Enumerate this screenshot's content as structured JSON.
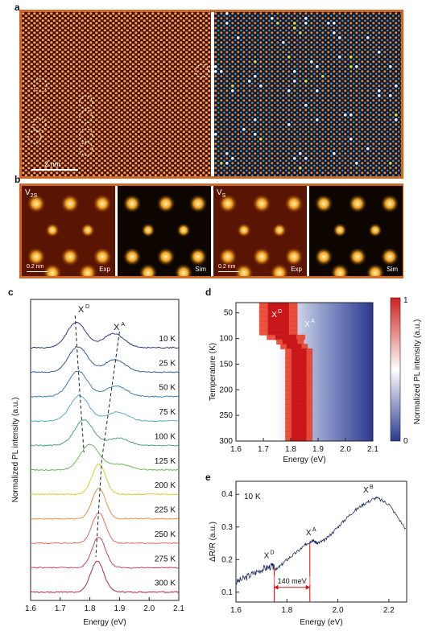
{
  "panel_a": {
    "label": "a",
    "scale_bar": "2 nm"
  },
  "panel_b": {
    "label": "b",
    "tiles": [
      {
        "corner": "V",
        "corner_sub": "2S",
        "tag": "Exp",
        "scale": "0.2 nm"
      },
      {
        "corner": "",
        "corner_sub": "",
        "tag": "Sim",
        "scale": ""
      },
      {
        "corner": "V",
        "corner_sub": "S",
        "tag": "Exp",
        "scale": "0.2 nm"
      },
      {
        "corner": "",
        "corner_sub": "",
        "tag": "Sim",
        "scale": ""
      }
    ]
  },
  "chart_data": [
    {
      "panel": "c",
      "type": "line",
      "xlabel": "Energy (eV)",
      "ylabel": "Normalized PL intensity (a.u.)",
      "xlim": [
        1.6,
        2.1
      ],
      "xticks": [
        "1.6",
        "1.7",
        "1.8",
        "1.9",
        "2.0",
        "2.1"
      ],
      "annotations": [
        "X",
        "D",
        "X",
        "A"
      ],
      "series": [
        {
          "name": "10 K",
          "peak": 1.755,
          "color": "#1a2a6c"
        },
        {
          "name": "25 K",
          "peak": 1.76,
          "color": "#1d4f8a"
        },
        {
          "name": "50 K",
          "peak": 1.76,
          "color": "#2a73a8"
        },
        {
          "name": "75 K",
          "peak": 1.765,
          "color": "#4aa3c8"
        },
        {
          "name": "100 K",
          "peak": 1.78,
          "color": "#3b9a6a"
        },
        {
          "name": "125 K",
          "peak": 1.8,
          "color": "#5db04a"
        },
        {
          "name": "200 K",
          "peak": 1.83,
          "color": "#d6c81a"
        },
        {
          "name": "225 K",
          "peak": 1.83,
          "color": "#e8843a"
        },
        {
          "name": "250 K",
          "peak": 1.83,
          "color": "#e0604a"
        },
        {
          "name": "275 K",
          "peak": 1.83,
          "color": "#c8305a"
        },
        {
          "name": "300 K",
          "peak": 1.825,
          "color": "#b0123a"
        }
      ]
    },
    {
      "panel": "d",
      "type": "heatmap",
      "xlabel": "Energy (eV)",
      "ylabel": "Temperature (K)",
      "xlim": [
        1.6,
        2.1
      ],
      "ylim": [
        30,
        300
      ],
      "xticks": [
        "1.6",
        "1.7",
        "1.8",
        "1.9",
        "2.0",
        "2.1"
      ],
      "yticks": [
        "50",
        "100",
        "150",
        "200",
        "250",
        "300"
      ],
      "colorbar": {
        "label": "Normalized PL intensity (a.u.)",
        "min": "0",
        "max": "1"
      },
      "annotations": [
        "X",
        "D",
        "X",
        "A"
      ]
    },
    {
      "panel": "e",
      "type": "line",
      "xlabel": "Energy (eV)",
      "ylabel": "ΔR/R (a.u.)",
      "xlim": [
        1.6,
        2.27
      ],
      "ylim": [
        0.07,
        0.44
      ],
      "xticks": [
        "1.6",
        "1.8",
        "2.0",
        "2.2"
      ],
      "yticks": [
        "0.1",
        "0.2",
        "0.3",
        "0.4"
      ],
      "temperature": "10 K",
      "annotations": [
        "X",
        "D",
        "X",
        "A",
        "X",
        "B"
      ],
      "gap_label": "140 meV",
      "x": [
        1.6,
        1.65,
        1.7,
        1.74,
        1.76,
        1.8,
        1.85,
        1.88,
        1.9,
        1.92,
        1.95,
        2.0,
        2.05,
        2.1,
        2.15,
        2.2,
        2.27
      ],
      "y": [
        0.13,
        0.15,
        0.17,
        0.18,
        0.17,
        0.2,
        0.23,
        0.25,
        0.26,
        0.25,
        0.26,
        0.3,
        0.34,
        0.37,
        0.39,
        0.37,
        0.29
      ]
    }
  ]
}
